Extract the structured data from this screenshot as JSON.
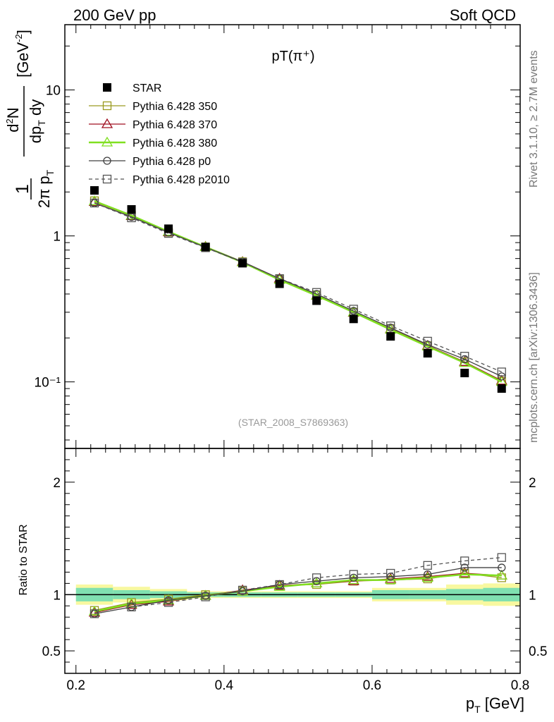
{
  "header": {
    "left": "200 GeV pp",
    "right": "Soft QCD"
  },
  "side_labels": {
    "rivet": "Rivet 3.1.10, ≥ 2.7M events",
    "mcplots": "mcplots.cern.ch [arXiv:1306.3436]"
  },
  "chart_data": {
    "type": "line",
    "title": "pT(π⁺)",
    "analysis_tag": "(STAR_2008_S7869363)",
    "xlabel": "p_T [GeV]",
    "ylabel": "1/(2π p_T) d²N/(dp_T dy) [GeV⁻²]",
    "ratio_ylabel": "Ratio to STAR",
    "xlim": [
      0.185,
      0.8
    ],
    "ylim_log": [
      0.035,
      28
    ],
    "ratio_ylim": [
      0.3,
      2.3
    ],
    "x_ticks": [
      "0.2",
      "0.4",
      "0.6",
      "0.8"
    ],
    "y_ticks": [
      "10⁻¹",
      "1",
      "10"
    ],
    "ratio_y_ticks": [
      "0.5",
      "1",
      "2"
    ],
    "x": [
      0.225,
      0.275,
      0.325,
      0.375,
      0.425,
      0.475,
      0.525,
      0.575,
      0.625,
      0.675,
      0.725,
      0.775
    ],
    "series": [
      {
        "name": "STAR",
        "color": "#000000",
        "marker": "filled-square",
        "values": [
          2.05,
          1.52,
          1.12,
          0.84,
          0.65,
          0.47,
          0.36,
          0.27,
          0.205,
          0.157,
          0.115,
          0.09
        ]
      },
      {
        "name": "Pythia 6.428 350",
        "color": "#9a9a20",
        "marker": "open-square",
        "values": [
          1.74,
          1.39,
          1.06,
          0.84,
          0.665,
          0.505,
          0.395,
          0.3,
          0.232,
          0.177,
          0.137,
          0.101
        ]
      },
      {
        "name": "Pythia 6.428 370",
        "color": "#a01020",
        "marker": "open-triangle",
        "values": [
          1.71,
          1.37,
          1.06,
          0.845,
          0.665,
          0.51,
          0.39,
          0.298,
          0.23,
          0.177,
          0.137,
          0.102
        ]
      },
      {
        "name": "Pythia 6.428 380",
        "color": "#80e020",
        "marker": "open-triangle",
        "values": [
          1.73,
          1.38,
          1.07,
          0.84,
          0.66,
          0.5,
          0.39,
          0.3,
          0.228,
          0.175,
          0.135,
          0.1
        ]
      },
      {
        "name": "Pythia 6.428 p0",
        "color": "#404040",
        "marker": "open-circle",
        "values": [
          1.68,
          1.35,
          1.055,
          0.835,
          0.665,
          0.51,
          0.4,
          0.306,
          0.235,
          0.18,
          0.143,
          0.109
        ]
      },
      {
        "name": "Pythia 6.428 p2010",
        "color": "#555555",
        "marker": "open-square-dashed",
        "values": [
          1.68,
          1.33,
          1.04,
          0.83,
          0.66,
          0.51,
          0.41,
          0.315,
          0.242,
          0.19,
          0.15,
          0.117
        ]
      }
    ],
    "ratios": [
      {
        "name": "Pythia 6.428 350",
        "values": [
          0.86,
          0.93,
          0.96,
          1.0,
          1.03,
          1.08,
          1.09,
          1.12,
          1.13,
          1.14,
          1.19,
          1.15
        ]
      },
      {
        "name": "Pythia 6.428 370",
        "values": [
          0.84,
          0.91,
          0.94,
          0.99,
          1.04,
          1.08,
          1.1,
          1.12,
          1.14,
          1.16,
          1.19,
          1.17
        ]
      },
      {
        "name": "Pythia 6.428 380",
        "values": [
          0.85,
          0.92,
          0.95,
          0.99,
          1.03,
          1.07,
          1.1,
          1.13,
          1.13,
          1.15,
          1.18,
          1.17
        ]
      },
      {
        "name": "Pythia 6.428 p0",
        "values": [
          0.83,
          0.89,
          0.95,
          0.99,
          1.03,
          1.09,
          1.12,
          1.15,
          1.16,
          1.18,
          1.24,
          1.24
        ]
      },
      {
        "name": "Pythia 6.428 p2010",
        "values": [
          0.83,
          0.89,
          0.93,
          0.98,
          1.04,
          1.09,
          1.15,
          1.18,
          1.19,
          1.26,
          1.3,
          1.33
        ]
      }
    ],
    "bands": {
      "inner": [
        0.06,
        0.04,
        0.03,
        0.02,
        0.02,
        0.02,
        0.02,
        0.02,
        0.04,
        0.04,
        0.05,
        0.06
      ],
      "outer": [
        0.09,
        0.07,
        0.05,
        0.03,
        0.03,
        0.03,
        0.03,
        0.03,
        0.06,
        0.06,
        0.09,
        0.1
      ]
    },
    "band_colors": {
      "inner": "#80e0b0",
      "outer": "#f8f8a0"
    }
  }
}
